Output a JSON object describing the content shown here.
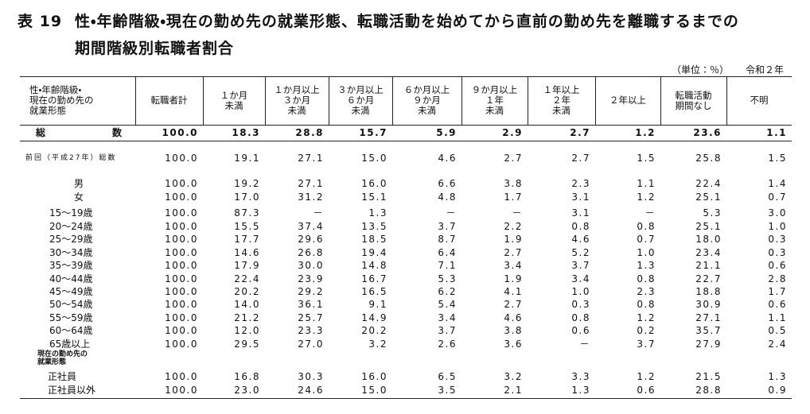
{
  "header": {
    "number": "表 19",
    "title": [
      "性・年齢階級・現在の勤め先の就業形態、転職活動を始めてから直前の勤め先を離職するまでの",
      "期間階級別転職者割合"
    ],
    "unit": "（単位：％）",
    "year": "令和２年"
  },
  "table": {
    "columns": [
      "性・年齢階級・\n現在の勤め先の\n就業形態",
      "転職者計",
      "１か月\n未満",
      "１か月以上\n３か月\n未満",
      "３か月以上\n６か月\n未満",
      "６か月以上\n９か月\n未満",
      "９か月以上\n１年\n未満",
      "１年以上\n２年\n未満",
      "２年以上",
      "転職活動\n期間なし",
      "不明"
    ],
    "rows": [
      {
        "label": "総数",
        "values": [
          "100.0",
          "18.3",
          "28.8",
          "15.7",
          "5.9",
          "2.9",
          "2.7",
          "1.2",
          "23.6",
          "1.1"
        ]
      },
      {
        "label": "前回（平成27年）総数",
        "values": [
          "100.0",
          "19.1",
          "27.1",
          "15.0",
          "4.6",
          "2.7",
          "2.7",
          "1.5",
          "25.8",
          "1.5"
        ]
      },
      {
        "label": "男",
        "values": [
          "100.0",
          "19.2",
          "27.1",
          "16.0",
          "6.6",
          "3.8",
          "2.3",
          "1.1",
          "22.4",
          "1.4"
        ]
      },
      {
        "label": "女",
        "values": [
          "100.0",
          "17.0",
          "31.2",
          "15.1",
          "4.8",
          "1.7",
          "3.1",
          "1.2",
          "25.1",
          "0.7"
        ]
      },
      {
        "label": "15～19歳",
        "values": [
          "100.0",
          "87.3",
          "－",
          "1.3",
          "－",
          "－",
          "3.1",
          "－",
          "5.3",
          "3.0"
        ]
      },
      {
        "label": "20～24歳",
        "values": [
          "100.0",
          "15.5",
          "37.4",
          "13.5",
          "3.7",
          "2.2",
          "0.8",
          "0.8",
          "25.1",
          "1.0"
        ]
      },
      {
        "label": "25～29歳",
        "values": [
          "100.0",
          "17.7",
          "29.6",
          "18.5",
          "8.7",
          "1.9",
          "4.6",
          "0.7",
          "18.0",
          "0.3"
        ]
      },
      {
        "label": "30～34歳",
        "values": [
          "100.0",
          "14.6",
          "26.8",
          "19.4",
          "6.4",
          "2.7",
          "5.2",
          "1.0",
          "23.4",
          "0.3"
        ]
      },
      {
        "label": "35～39歳",
        "values": [
          "100.0",
          "17.9",
          "30.0",
          "14.8",
          "7.1",
          "3.4",
          "3.7",
          "1.3",
          "21.1",
          "0.6"
        ]
      },
      {
        "label": "40～44歳",
        "values": [
          "100.0",
          "22.4",
          "23.9",
          "16.7",
          "5.3",
          "1.9",
          "3.4",
          "0.8",
          "22.7",
          "2.8"
        ]
      },
      {
        "label": "45～49歳",
        "values": [
          "100.0",
          "20.2",
          "29.2",
          "16.5",
          "6.2",
          "4.1",
          "1.0",
          "2.3",
          "18.8",
          "1.7"
        ]
      },
      {
        "label": "50～54歳",
        "values": [
          "100.0",
          "14.0",
          "36.1",
          "9.1",
          "5.4",
          "2.7",
          "0.3",
          "0.8",
          "30.9",
          "0.6"
        ]
      },
      {
        "label": "55～59歳",
        "values": [
          "100.0",
          "21.2",
          "25.7",
          "14.9",
          "3.4",
          "4.6",
          "0.8",
          "1.2",
          "27.1",
          "1.1"
        ]
      },
      {
        "label": "60～64歳",
        "values": [
          "100.0",
          "12.0",
          "23.3",
          "20.2",
          "3.7",
          "3.8",
          "0.6",
          "0.2",
          "35.7",
          "0.5"
        ]
      },
      {
        "label": "65歳以上",
        "values": [
          "100.0",
          "29.5",
          "27.0",
          "3.2",
          "2.6",
          "3.6",
          "－",
          "3.7",
          "27.9",
          "2.4"
        ]
      },
      {
        "label": "現在の勤め先の\n就業形態"
      },
      {
        "label": "正社員",
        "values": [
          "100.0",
          "16.8",
          "30.3",
          "16.0",
          "6.5",
          "3.2",
          "3.3",
          "1.2",
          "21.5",
          "1.3"
        ]
      },
      {
        "label": "正社員以外",
        "values": [
          "100.0",
          "23.0",
          "24.6",
          "15.0",
          "3.5",
          "2.1",
          "1.3",
          "0.6",
          "28.8",
          "0.9"
        ]
      }
    ]
  }
}
